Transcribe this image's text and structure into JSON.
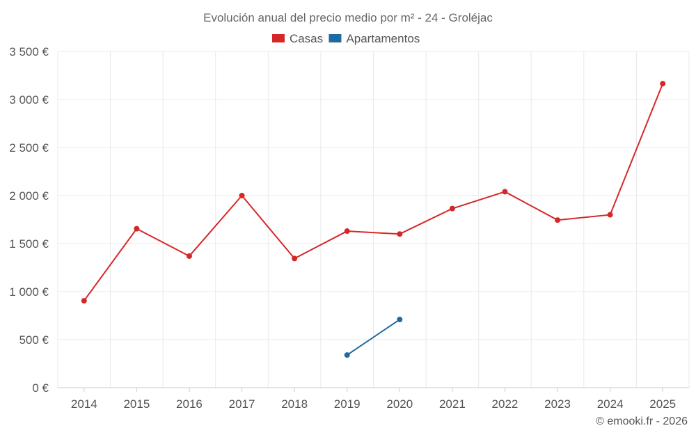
{
  "credit": "© emooki.fr - 2026",
  "chart_data": {
    "type": "line",
    "title": "Evolución anual del precio medio por m² - 24 - Groléjac",
    "xlabel": "",
    "ylabel": "",
    "categories": [
      "2014",
      "2015",
      "2016",
      "2017",
      "2018",
      "2019",
      "2020",
      "2021",
      "2022",
      "2023",
      "2024",
      "2025"
    ],
    "ylim": [
      0,
      3500
    ],
    "yticks": [
      0,
      500,
      1000,
      1500,
      2000,
      2500,
      3000,
      3500
    ],
    "ytick_labels": [
      "0 €",
      "500 €",
      "1 000 €",
      "1 500 €",
      "2 000 €",
      "2 500 €",
      "3 000 €",
      "3 500 €"
    ],
    "grid": true,
    "legend_position": "top",
    "series": [
      {
        "name": "Casas",
        "color": "#d62728",
        "values": [
          905,
          1655,
          1370,
          2000,
          1345,
          1630,
          1600,
          1865,
          2040,
          1745,
          1800,
          3165
        ]
      },
      {
        "name": "Apartamentos",
        "color": "#1f6aa0",
        "values": [
          null,
          null,
          null,
          null,
          null,
          340,
          710,
          null,
          null,
          null,
          null,
          null
        ]
      }
    ]
  }
}
